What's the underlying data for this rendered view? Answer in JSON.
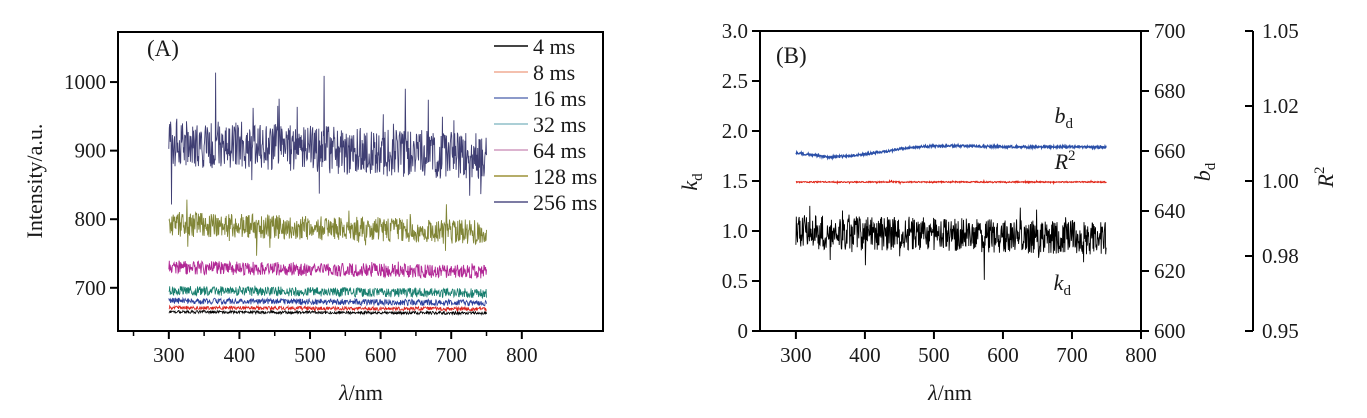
{
  "figure": {
    "background": "#ffffff",
    "text_color": "#1a1a1a",
    "frame_color": "#000000"
  },
  "chart_data": [
    {
      "type": "line",
      "panel_tag": "(A)",
      "title": "",
      "xlabel": {
        "italic": "λ",
        "roman": "/nm"
      },
      "ylabel": "Intensity/a.u.",
      "xlim": [
        228,
        915
      ],
      "ylim": [
        637,
        1073
      ],
      "xticks": [
        300,
        400,
        500,
        600,
        700,
        800
      ],
      "xminorticks": [
        250,
        350,
        450,
        550,
        650,
        750
      ],
      "yticks": [
        700,
        800,
        900,
        1000
      ],
      "data_x_range": [
        300,
        750
      ],
      "grid": false,
      "legend_position": "top-right-inside",
      "series": [
        {
          "label": "4 ms",
          "color": "#000000",
          "legend_color": "#454545",
          "level_start": 665,
          "level_end": 663,
          "noise": 2.2,
          "spike": 0,
          "spike_p": 0,
          "lw": 0.8
        },
        {
          "label": "8 ms",
          "color": "#d8231b",
          "legend_color": "#f4c0ae",
          "level_start": 671,
          "level_end": 669,
          "noise": 2.8,
          "spike": 0,
          "spike_p": 0,
          "lw": 0.8
        },
        {
          "label": "16 ms",
          "color": "#2a3f9d",
          "legend_color": "#8c9aca",
          "level_start": 681,
          "level_end": 678,
          "noise": 4.5,
          "spike": 0,
          "spike_p": 0,
          "lw": 0.8
        },
        {
          "label": "32 ms",
          "color": "#167d6d",
          "legend_color": "#abcfd6",
          "level_start": 696,
          "level_end": 692,
          "noise": 7,
          "spike": 10,
          "spike_p": 0.02,
          "lw": 0.8
        },
        {
          "label": "64 ms",
          "color": "#b12795",
          "legend_color": "#dcb3cf",
          "level_start": 730,
          "level_end": 723,
          "noise": 10,
          "spike": 14,
          "spike_p": 0.02,
          "lw": 0.9
        },
        {
          "label": "128 ms",
          "color": "#808536",
          "legend_color": "#b5ad69",
          "level_start": 793,
          "level_end": 781,
          "noise": 18,
          "spike": 42,
          "spike_p": 0.03,
          "lw": 0.9
        },
        {
          "label": "256 ms",
          "color": "#3f3e73",
          "legend_color": "#7c7ba3",
          "level_start": 912,
          "level_end": 891,
          "noise": 35,
          "spike": 80,
          "spike_p": 0.03,
          "lw": 0.9
        }
      ]
    },
    {
      "type": "line",
      "panel_tag": "(B)",
      "title": "",
      "xlabel": {
        "italic": "λ",
        "roman": "/nm"
      },
      "xlim": [
        248,
        800
      ],
      "xticks": [
        300,
        400,
        500,
        600,
        700,
        800
      ],
      "data_x_range": [
        300,
        750
      ],
      "grid": false,
      "axes": {
        "left": {
          "title": {
            "main": "k",
            "sub": "d"
          },
          "lim": [
            0,
            3
          ],
          "tick_labels": [
            "0",
            "0.5",
            "1.0",
            "1.5",
            "2.0",
            "2.5",
            "3.0"
          ]
        },
        "right_bd": {
          "title": {
            "main": "b",
            "sub": "d"
          },
          "lim": [
            600,
            700
          ],
          "tick_labels": [
            "600",
            "620",
            "640",
            "660",
            "680",
            "700"
          ]
        },
        "right_r2": {
          "title": {
            "main": "R",
            "sup": "2"
          },
          "tick_labels": [
            "0.95",
            "0.98",
            "1.00",
            "1.02",
            "1.05"
          ]
        }
      },
      "series": [
        {
          "label": "b_d",
          "color": "#2a4fa8",
          "noise": 0.013,
          "spike": 0,
          "spike_p": 0,
          "lw": 1.3,
          "profile": [
            [
              300,
              1.78
            ],
            [
              320,
              1.765
            ],
            [
              345,
              1.737
            ],
            [
              365,
              1.745
            ],
            [
              395,
              1.765
            ],
            [
              425,
              1.79
            ],
            [
              455,
              1.825
            ],
            [
              485,
              1.848
            ],
            [
              530,
              1.852
            ],
            [
              580,
              1.845
            ],
            [
              640,
              1.84
            ],
            [
              700,
              1.843
            ],
            [
              750,
              1.838
            ]
          ]
        },
        {
          "label": "R²",
          "color": "#e02315",
          "noise": 0.006,
          "spike": 0.015,
          "spike_p": 0.03,
          "lw": 1.0,
          "profile": [
            [
              300,
              1.49
            ],
            [
              750,
              1.49
            ]
          ]
        },
        {
          "label": "k_d",
          "color": "#000000",
          "noise": 0.17,
          "spike": 0.28,
          "spike_p": 0.06,
          "lw": 0.9,
          "profile": [
            [
              300,
              0.99
            ],
            [
              400,
              0.975
            ],
            [
              500,
              0.965
            ],
            [
              600,
              0.95
            ],
            [
              750,
              0.925
            ]
          ]
        }
      ],
      "annotations": [
        {
          "main": "b",
          "sub": "d",
          "x": 688,
          "y": 2.08
        },
        {
          "main": "R",
          "sup": "2",
          "x": 690,
          "y": 1.62
        },
        {
          "main": "k",
          "sub": "d",
          "x": 686,
          "y": 0.41
        }
      ]
    }
  ]
}
